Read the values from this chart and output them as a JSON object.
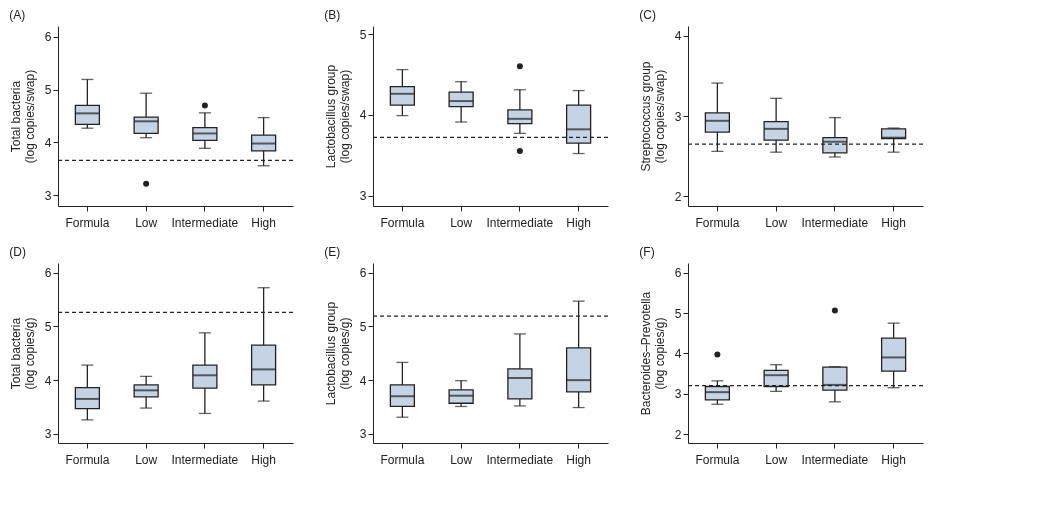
{
  "chart_data": [
    {
      "type": "box",
      "title": "(A)",
      "ylabel": "Total bacteria (log copies/swap)",
      "categories": [
        "Formula",
        "Low",
        "Intermediate",
        "High"
      ],
      "ylim": [
        2.8,
        6.2
      ],
      "yticks": [
        3,
        4,
        5,
        6
      ],
      "series": [
        {
          "color": "#c4d4e4",
          "boxes": [
            {
              "low": 4.27,
              "q1": 4.34,
              "median": 4.55,
              "q3": 4.7,
              "high": 5.19
            },
            {
              "low": 4.09,
              "q1": 4.17,
              "median": 4.4,
              "q3": 4.48,
              "high": 4.93,
              "outliers": [
                3.22
              ]
            },
            {
              "low": 3.89,
              "q1": 4.04,
              "median": 4.17,
              "q3": 4.28,
              "high": 4.56,
              "outliers": [
                4.7
              ]
            },
            {
              "low": 3.56,
              "q1": 3.84,
              "median": 3.98,
              "q3": 4.14,
              "high": 4.47
            }
          ]
        }
      ],
      "ref_lines": [
        {
          "axis": "y",
          "value": 3.66,
          "line_style": "dashed"
        }
      ]
    },
    {
      "type": "box",
      "title": "(B)",
      "ylabel": "Lactobacillus group (log copies/swap)",
      "categories": [
        "Formula",
        "Low",
        "Intermediate",
        "High"
      ],
      "ylim": [
        2.87,
        5.1
      ],
      "yticks": [
        3,
        4,
        5
      ],
      "series": [
        {
          "color": "#c4d4e4",
          "boxes": [
            {
              "low": 3.99,
              "q1": 4.12,
              "median": 4.26,
              "q3": 4.35,
              "high": 4.56
            },
            {
              "low": 3.91,
              "q1": 4.1,
              "median": 4.17,
              "q3": 4.28,
              "high": 4.41
            },
            {
              "low": 3.77,
              "q1": 3.89,
              "median": 3.95,
              "q3": 4.06,
              "high": 4.31,
              "outliers": [
                4.6,
                3.55
              ]
            },
            {
              "low": 3.52,
              "q1": 3.65,
              "median": 3.82,
              "q3": 4.12,
              "high": 4.3
            }
          ]
        }
      ],
      "ref_lines": [
        {
          "axis": "y",
          "value": 3.72,
          "line_style": "dashed"
        }
      ]
    },
    {
      "type": "box",
      "title": "(C)",
      "ylabel": "Streptococcus group (log copies/swap)",
      "categories": [
        "Formula",
        "Low",
        "Intermediate",
        "High"
      ],
      "ylim": [
        1.88,
        4.12
      ],
      "yticks": [
        2,
        3,
        4
      ],
      "series": [
        {
          "color": "#c4d4e4",
          "boxes": [
            {
              "low": 2.56,
              "q1": 2.8,
              "median": 2.94,
              "q3": 3.04,
              "high": 3.41
            },
            {
              "low": 2.55,
              "q1": 2.7,
              "median": 2.84,
              "q3": 2.93,
              "high": 3.22
            },
            {
              "low": 2.49,
              "q1": 2.54,
              "median": 2.68,
              "q3": 2.73,
              "high": 2.98
            },
            {
              "low": 2.55,
              "q1": 2.72,
              "median": 2.73,
              "q3": 2.84,
              "high": 2.85
            }
          ]
        }
      ],
      "ref_lines": [
        {
          "axis": "y",
          "value": 2.65,
          "line_style": "dashed"
        }
      ]
    },
    {
      "type": "box",
      "title": "(D)",
      "ylabel": "Total bacteria (log copies/g)",
      "categories": [
        "Formula",
        "Low",
        "Intermediate",
        "High"
      ],
      "ylim": [
        2.83,
        6.18
      ],
      "yticks": [
        3,
        4,
        5,
        6
      ],
      "series": [
        {
          "color": "#c4d4e4",
          "boxes": [
            {
              "low": 3.26,
              "q1": 3.47,
              "median": 3.65,
              "q3": 3.86,
              "high": 4.28
            },
            {
              "low": 3.48,
              "q1": 3.69,
              "median": 3.81,
              "q3": 3.91,
              "high": 4.07
            },
            {
              "low": 3.38,
              "q1": 3.85,
              "median": 4.09,
              "q3": 4.28,
              "high": 4.88
            },
            {
              "low": 3.61,
              "q1": 3.91,
              "median": 4.2,
              "q3": 4.65,
              "high": 5.72
            }
          ]
        }
      ],
      "ref_lines": [
        {
          "axis": "y",
          "value": 5.26,
          "line_style": "dashed"
        }
      ]
    },
    {
      "type": "box",
      "title": "(E)",
      "ylabel": "Lactobacillus group (log copies/g)",
      "categories": [
        "Formula",
        "Low",
        "Intermediate",
        "High"
      ],
      "ylim": [
        2.83,
        6.18
      ],
      "yticks": [
        3,
        4,
        5,
        6
      ],
      "series": [
        {
          "color": "#c4d4e4",
          "boxes": [
            {
              "low": 3.31,
              "q1": 3.51,
              "median": 3.7,
              "q3": 3.91,
              "high": 4.33
            },
            {
              "low": 3.51,
              "q1": 3.57,
              "median": 3.71,
              "q3": 3.82,
              "high": 3.99
            },
            {
              "low": 3.52,
              "q1": 3.65,
              "median": 4.04,
              "q3": 4.21,
              "high": 4.86
            },
            {
              "low": 3.49,
              "q1": 3.78,
              "median": 4.0,
              "q3": 4.6,
              "high": 5.47
            }
          ]
        }
      ],
      "ref_lines": [
        {
          "axis": "y",
          "value": 5.19,
          "line_style": "dashed"
        }
      ]
    },
    {
      "type": "box",
      "title": "(F)",
      "ylabel": "Bacteroides–Prevotella (log copies/g)",
      "categories": [
        "Formula",
        "Low",
        "Intermediate",
        "High"
      ],
      "ylim": [
        1.78,
        6.24
      ],
      "yticks": [
        2,
        3,
        4,
        5,
        6
      ],
      "series": [
        {
          "color": "#c4d4e4",
          "boxes": [
            {
              "low": 2.74,
              "q1": 2.85,
              "median": 3.04,
              "q3": 3.18,
              "high": 3.32,
              "outliers": [
                3.97
              ]
            },
            {
              "low": 3.06,
              "q1": 3.18,
              "median": 3.46,
              "q3": 3.58,
              "high": 3.72
            },
            {
              "low": 2.8,
              "q1": 3.09,
              "median": 3.22,
              "q3": 3.66,
              "high": 3.67,
              "outliers": [
                5.06
              ]
            },
            {
              "low": 3.15,
              "q1": 3.56,
              "median": 3.9,
              "q3": 4.38,
              "high": 4.75
            }
          ]
        }
      ],
      "ref_lines": [
        {
          "axis": "y",
          "value": 3.2,
          "line_style": "dashed"
        }
      ]
    }
  ]
}
